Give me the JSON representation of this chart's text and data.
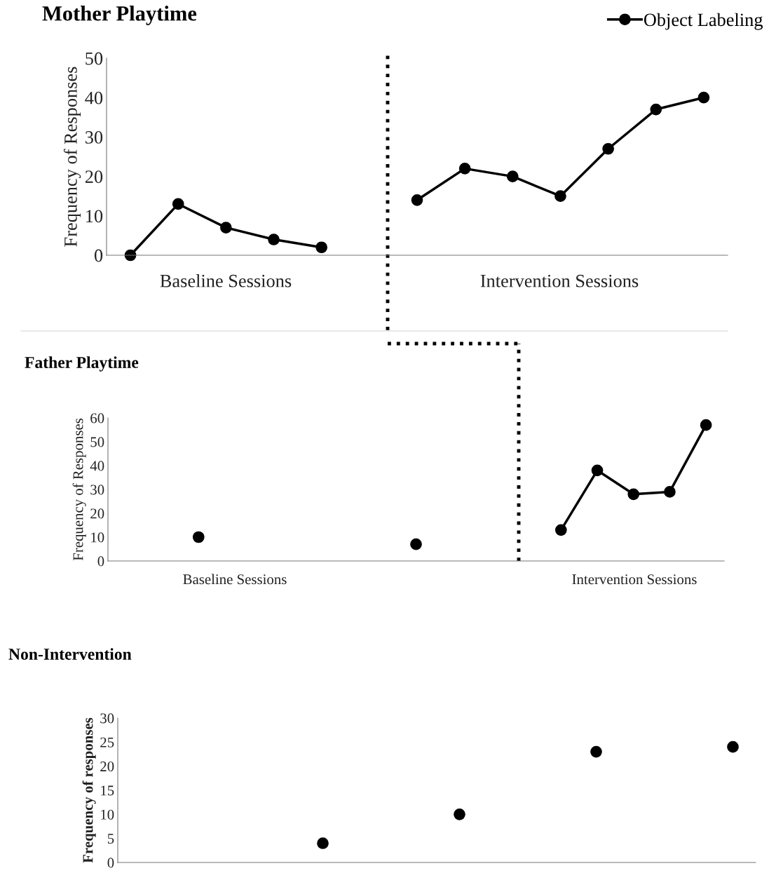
{
  "chart_data": [
    {
      "type": "line",
      "title": "Mother Playtime",
      "ylabel": "Frequency of Responses",
      "categories": [
        null,
        null,
        null,
        null,
        null,
        null,
        null,
        null,
        null,
        null,
        null,
        null,
        null
      ],
      "series": [
        {
          "name": "Object Labeling",
          "color": "#000000",
          "values": [
            0,
            13,
            7,
            4,
            2,
            null,
            14,
            22,
            20,
            15,
            27,
            37,
            40
          ]
        }
      ],
      "ylim": [
        0,
        50
      ],
      "yticks": [
        0,
        10,
        20,
        30,
        40,
        50
      ],
      "marker": "circle",
      "legend": "top right",
      "grid": false,
      "annotations": [
        "Baseline Sessions",
        "Intervention Sessions"
      ]
    },
    {
      "type": "line",
      "title": "Father Playtime",
      "ylabel": "Frequency of Responses",
      "categories": [
        null,
        null,
        null,
        null,
        null,
        null,
        null,
        null,
        null,
        null,
        null,
        null,
        null,
        null,
        null,
        null,
        null
      ],
      "series": [
        {
          "type": "scatter",
          "color": "#000000",
          "values": [
            null,
            null,
            10,
            null,
            null,
            null,
            null,
            null,
            7,
            null,
            null,
            null,
            null,
            null,
            null,
            null,
            null
          ]
        },
        {
          "type": "line",
          "color": "#000000",
          "values": [
            null,
            null,
            null,
            null,
            null,
            null,
            null,
            null,
            null,
            null,
            null,
            null,
            13,
            38,
            28,
            29,
            57
          ]
        }
      ],
      "ylim": [
        0,
        60
      ],
      "yticks": [
        0,
        10,
        20,
        30,
        40,
        50,
        60
      ],
      "marker": "circle",
      "grid": false,
      "annotations": [
        "Baseline Sessions",
        "Intervention Sessions"
      ]
    },
    {
      "type": "scatter",
      "title": "Non-Intervention",
      "ylabel": "Frequency of responses",
      "categories": [
        null,
        null,
        null,
        null,
        null,
        null,
        null,
        null,
        null,
        null,
        null,
        null,
        null,
        null
      ],
      "series": [
        {
          "color": "#000000",
          "values": [
            null,
            null,
            null,
            null,
            4,
            null,
            null,
            10,
            null,
            null,
            23,
            null,
            null,
            24
          ]
        }
      ],
      "ylim": [
        0,
        30
      ],
      "yticks": [
        0,
        5,
        10,
        15,
        20,
        25,
        30
      ],
      "marker": "circle",
      "grid": false
    }
  ]
}
